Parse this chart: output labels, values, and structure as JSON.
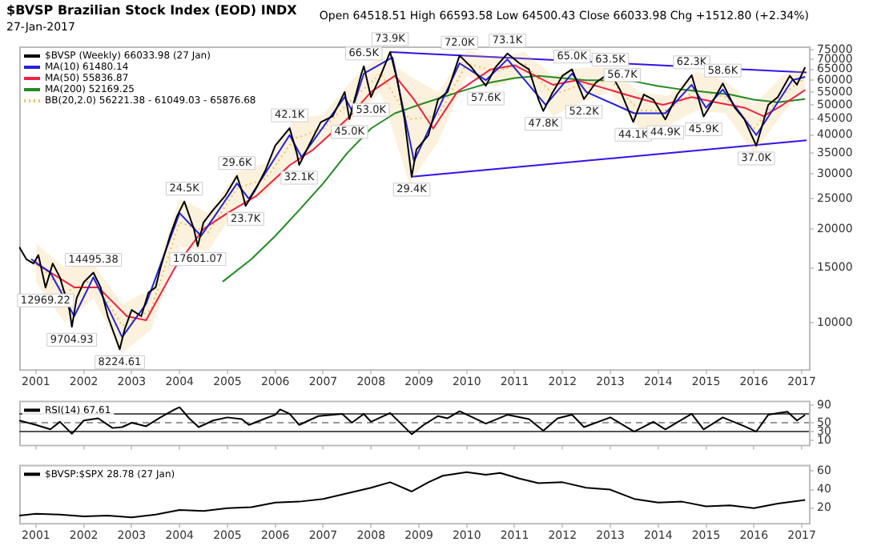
{
  "chart_data": [
    {
      "type": "line",
      "title": "$BVSP Brazilian Stock Index (EOD) INDX",
      "subtitle": "27-Jan-2017",
      "log": "y",
      "legend": "top left",
      "grid": false,
      "marker": "none",
      "xlim": [
        2000.65,
        2017.15
      ],
      "xticks": [
        2001,
        2002,
        2003,
        2004,
        2005,
        2006,
        2007,
        2008,
        2009,
        2010,
        2011,
        2012,
        2013,
        2014,
        2015,
        2016,
        2017
      ],
      "ylim": [
        7100,
        77000
      ],
      "yticks": [
        10000,
        15000,
        20000,
        25000,
        30000,
        35000,
        40000,
        45000,
        50000,
        55000,
        60000,
        65000,
        70000,
        75000
      ],
      "annotations": [
        "Open 64518.51 High 66593.58 Low 64500.43 Close 66033.98 Chg +1512.80 (+2.34%)",
        {
          "text": "12969.22",
          "x": 2001.2,
          "y": 12969.22
        },
        {
          "text": "9704.93",
          "x": 2001.75,
          "y": 9704.93
        },
        {
          "text": "14495.38",
          "x": 2002.2,
          "y": 14495.38
        },
        {
          "text": "8224.61",
          "x": 2002.75,
          "y": 8224.61
        },
        {
          "text": "24.5K",
          "x": 2004.1,
          "y": 24500
        },
        {
          "text": "17601.07",
          "x": 2004.38,
          "y": 17601.07
        },
        {
          "text": "29.6K",
          "x": 2005.2,
          "y": 29600
        },
        {
          "text": "23.7K",
          "x": 2005.38,
          "y": 23700
        },
        {
          "text": "42.1K",
          "x": 2006.3,
          "y": 42100
        },
        {
          "text": "32.1K",
          "x": 2006.5,
          "y": 32100
        },
        {
          "text": "45.0K",
          "x": 2007.55,
          "y": 45000
        },
        {
          "text": "66.5K",
          "x": 2007.85,
          "y": 66500
        },
        {
          "text": "53.0K",
          "x": 2008.0,
          "y": 53000
        },
        {
          "text": "73.9K",
          "x": 2008.4,
          "y": 73900
        },
        {
          "text": "29.4K",
          "x": 2008.85,
          "y": 29400
        },
        {
          "text": "72.0K",
          "x": 2009.85,
          "y": 72000
        },
        {
          "text": "57.6K",
          "x": 2010.4,
          "y": 57600
        },
        {
          "text": "73.1K",
          "x": 2010.85,
          "y": 73100
        },
        {
          "text": "47.8K",
          "x": 2011.6,
          "y": 47800
        },
        {
          "text": "65.0K",
          "x": 2012.2,
          "y": 65000
        },
        {
          "text": "52.2K",
          "x": 2012.45,
          "y": 52200
        },
        {
          "text": "63.5K",
          "x": 2013.0,
          "y": 63500
        },
        {
          "text": "56.7K",
          "x": 2013.25,
          "y": 56700
        },
        {
          "text": "44.1K",
          "x": 2013.48,
          "y": 44100
        },
        {
          "text": "44.9K",
          "x": 2014.15,
          "y": 44900
        },
        {
          "text": "62.3K",
          "x": 2014.7,
          "y": 62300
        },
        {
          "text": "45.9K",
          "x": 2014.95,
          "y": 45900
        },
        {
          "text": "58.6K",
          "x": 2015.35,
          "y": 58600
        },
        {
          "text": "37.0K",
          "x": 2016.05,
          "y": 37000
        }
      ],
      "series": [
        {
          "name": "$BVSP (Weekly) 66033.98 (27 Jan)",
          "color": "#000000",
          "x": [
            2000.65,
            2000.8,
            2000.95,
            2001.05,
            2001.2,
            2001.35,
            2001.5,
            2001.7,
            2001.75,
            2001.85,
            2002.0,
            2002.2,
            2002.35,
            2002.5,
            2002.75,
            2002.85,
            2003.0,
            2003.2,
            2003.35,
            2003.5,
            2003.6,
            2003.8,
            2003.95,
            2004.1,
            2004.3,
            2004.38,
            2004.5,
            2004.7,
            2004.95,
            2005.2,
            2005.3,
            2005.38,
            2005.6,
            2005.8,
            2006.0,
            2006.3,
            2006.45,
            2006.5,
            2006.7,
            2006.95,
            2007.2,
            2007.45,
            2007.55,
            2007.8,
            2007.85,
            2008.0,
            2008.2,
            2008.4,
            2008.55,
            2008.7,
            2008.85,
            2008.95,
            2009.2,
            2009.4,
            2009.6,
            2009.85,
            2010.1,
            2010.4,
            2010.6,
            2010.85,
            2011.1,
            2011.3,
            2011.5,
            2011.6,
            2011.8,
            2012.0,
            2012.2,
            2012.45,
            2012.7,
            2013.0,
            2013.2,
            2013.48,
            2013.7,
            2013.9,
            2014.15,
            2014.4,
            2014.7,
            2014.95,
            2015.1,
            2015.35,
            2015.6,
            2015.8,
            2016.05,
            2016.3,
            2016.5,
            2016.75,
            2016.9,
            2017.07
          ],
          "values": [
            17500,
            16000,
            15500,
            16500,
            12969.22,
            15500,
            14000,
            11000,
            9704.93,
            12000,
            13500,
            14495.38,
            13000,
            10500,
            8224.61,
            9500,
            11000,
            10500,
            12500,
            13000,
            15000,
            19000,
            22000,
            24500,
            20000,
            17601.07,
            21000,
            23000,
            25500,
            29600,
            26500,
            23700,
            27000,
            31000,
            37000,
            42100,
            35000,
            32100,
            37000,
            44000,
            46000,
            55000,
            45000,
            63000,
            66500,
            53000,
            62000,
            73900,
            60000,
            45000,
            29400,
            36000,
            40000,
            52000,
            55000,
            72000,
            66000,
            57600,
            66000,
            73100,
            68000,
            65000,
            52000,
            47800,
            55000,
            62000,
            65000,
            52200,
            59000,
            63500,
            56000,
            44100,
            54000,
            52000,
            44900,
            54000,
            62300,
            45900,
            50000,
            58600,
            49000,
            45000,
            37000,
            50000,
            53000,
            62000,
            58000,
            66033.98
          ]
        },
        {
          "name": "MA(10) 61480.14",
          "color": "#2222dd",
          "x": [
            2000.9,
            2001.3,
            2001.8,
            2002.2,
            2002.8,
            2003.3,
            2004.0,
            2004.45,
            2005.2,
            2005.45,
            2006.3,
            2006.55,
            2007.45,
            2007.6,
            2007.85,
            2008.45,
            2008.9,
            2009.85,
            2010.4,
            2010.85,
            2011.65,
            2012.2,
            2012.5,
            2013.5,
            2014.15,
            2014.7,
            2015.0,
            2015.35,
            2016.05,
            2016.8,
            2017.07
          ],
          "values": [
            16000,
            14500,
            10500,
            14000,
            9000,
            11500,
            22500,
            19000,
            28000,
            25000,
            40000,
            34000,
            53000,
            48000,
            63000,
            71000,
            33000,
            68000,
            60000,
            70000,
            50000,
            63000,
            55000,
            47000,
            47000,
            58000,
            49000,
            56000,
            40000,
            60000,
            61480.14
          ]
        },
        {
          "name": "MA(50) 55836.87",
          "color": "#ee2244",
          "x": [
            2001.0,
            2001.8,
            2002.3,
            2002.9,
            2003.3,
            2003.9,
            2004.5,
            2005.0,
            2005.6,
            2006.3,
            2006.8,
            2007.5,
            2008.0,
            2008.5,
            2008.9,
            2009.3,
            2009.8,
            2010.5,
            2011.0,
            2011.8,
            2012.3,
            2012.8,
            2013.5,
            2014.1,
            2014.7,
            2015.2,
            2015.8,
            2016.2,
            2016.6,
            2017.07
          ],
          "values": [
            15500,
            13000,
            13000,
            10500,
            10200,
            15000,
            20000,
            22500,
            25500,
            32000,
            36000,
            45000,
            55000,
            62000,
            52000,
            42000,
            55000,
            65000,
            67000,
            58000,
            60000,
            57000,
            53000,
            50000,
            53000,
            51000,
            49000,
            46000,
            50000,
            55836.87
          ]
        },
        {
          "name": "MA(200) 52169.25",
          "color": "#228b22",
          "x": [
            2004.9,
            2005.5,
            2006.0,
            2006.5,
            2007.0,
            2007.5,
            2008.0,
            2008.5,
            2009.0,
            2009.5,
            2010.0,
            2010.5,
            2011.0,
            2011.5,
            2012.0,
            2012.5,
            2013.0,
            2013.5,
            2014.0,
            2014.5,
            2015.0,
            2015.5,
            2016.0,
            2016.5,
            2017.07
          ],
          "values": [
            13550,
            16000,
            19000,
            23000,
            28000,
            35000,
            42000,
            47000,
            50000,
            53000,
            56000,
            59000,
            61000,
            62000,
            61000,
            60000,
            60000,
            59500,
            57500,
            56000,
            55000,
            54000,
            52000,
            51000,
            52169.25
          ]
        },
        {
          "name": "BB(20,2.0) 56221.38 - 61049.03 - 65876.68",
          "color": "#f0c060",
          "line_style": "dotted",
          "x": [
            2001.0,
            2001.6,
            2002.2,
            2002.8,
            2003.4,
            2004.0,
            2004.6,
            2005.2,
            2005.8,
            2006.4,
            2007.0,
            2007.6,
            2008.2,
            2008.8,
            2009.4,
            2010.0,
            2010.6,
            2011.2,
            2011.8,
            2012.4,
            2013.0,
            2013.6,
            2014.2,
            2014.8,
            2015.4,
            2016.0,
            2016.6,
            2017.07
          ],
          "values": [
            15800,
            12500,
            13800,
            9800,
            11000,
            21000,
            19500,
            27000,
            29000,
            39000,
            42000,
            52000,
            63000,
            45000,
            46000,
            68000,
            64000,
            68000,
            54000,
            58000,
            60000,
            48000,
            48000,
            56000,
            53000,
            42000,
            54000,
            61049.03
          ],
          "lower": [
            13500,
            10000,
            12000,
            8000,
            9500,
            17500,
            17000,
            23500,
            26000,
            33000,
            38000,
            45000,
            55000,
            28000,
            38000,
            62000,
            57000,
            62000,
            46000,
            51000,
            55000,
            42000,
            43000,
            48000,
            47000,
            35000,
            47000,
            56221.38
          ],
          "upper": [
            18000,
            15000,
            15500,
            11500,
            12800,
            25000,
            22500,
            30500,
            32500,
            45000,
            46500,
            60000,
            72000,
            62000,
            55000,
            75000,
            71000,
            74000,
            62000,
            66000,
            65500,
            55000,
            53500,
            64000,
            60000,
            50000,
            62000,
            65876.68
          ]
        },
        {
          "color": "#3311ee",
          "x": [
            2008.4,
            2017.1
          ],
          "values": [
            73900,
            63500
          ]
        },
        {
          "color": "#3311ee",
          "x": [
            2008.85,
            2017.1
          ],
          "values": [
            29400,
            38500
          ]
        }
      ]
    },
    {
      "type": "line",
      "legend": "top left",
      "grid": false,
      "marker": "none",
      "tick_labels": "y",
      "xlim": [
        2000.65,
        2017.15
      ],
      "xticks": [
        2001,
        2002,
        2003,
        2004,
        2005,
        2006,
        2007,
        2008,
        2009,
        2010,
        2011,
        2012,
        2013,
        2014,
        2015,
        2016,
        2017
      ],
      "ylim": [
        0,
        100
      ],
      "yticks": [
        10,
        30,
        50,
        90
      ],
      "ref_lines": [
        {
          "axis": "y",
          "value": 70,
          "color": "#555555"
        },
        {
          "axis": "y",
          "value": 30,
          "color": "#555555"
        },
        {
          "axis": "y",
          "value": 50,
          "color": "#999999",
          "line_style": "dashed"
        }
      ],
      "series": [
        {
          "name": "RSI(14) 67.61",
          "color": "#000000",
          "x": [
            2000.65,
            2001.0,
            2001.3,
            2001.5,
            2001.75,
            2002.0,
            2002.3,
            2002.6,
            2002.8,
            2003.0,
            2003.3,
            2003.6,
            2003.9,
            2004.0,
            2004.2,
            2004.4,
            2004.7,
            2005.0,
            2005.3,
            2005.45,
            2005.8,
            2006.0,
            2006.1,
            2006.3,
            2006.5,
            2006.9,
            2007.4,
            2007.6,
            2007.85,
            2008.0,
            2008.4,
            2008.85,
            2009.1,
            2009.4,
            2009.6,
            2009.85,
            2010.4,
            2010.85,
            2011.3,
            2011.6,
            2011.9,
            2012.2,
            2012.45,
            2013.0,
            2013.5,
            2013.9,
            2014.15,
            2014.7,
            2014.95,
            2015.35,
            2015.8,
            2016.05,
            2016.3,
            2016.7,
            2016.9,
            2017.07
          ],
          "values": [
            55,
            45,
            35,
            52,
            25,
            55,
            60,
            38,
            40,
            50,
            42,
            62,
            80,
            85,
            60,
            40,
            55,
            62,
            58,
            45,
            60,
            68,
            80,
            70,
            45,
            65,
            70,
            50,
            70,
            52,
            72,
            24,
            45,
            65,
            60,
            76,
            48,
            68,
            58,
            32,
            60,
            68,
            40,
            62,
            30,
            52,
            35,
            70,
            35,
            62,
            42,
            30,
            68,
            75,
            55,
            67.61
          ]
        }
      ]
    },
    {
      "type": "line",
      "legend": "top left",
      "grid": false,
      "marker": "none",
      "xlim": [
        2000.65,
        2017.15
      ],
      "xticks": [
        2001,
        2002,
        2003,
        2004,
        2005,
        2006,
        2007,
        2008,
        2009,
        2010,
        2011,
        2012,
        2013,
        2014,
        2015,
        2016,
        2017
      ],
      "ylim": [
        4,
        67
      ],
      "yticks": [
        20,
        40,
        60
      ],
      "series": [
        {
          "name": "$BVSP:$SPX 28.78 (27 Jan)",
          "color": "#000000",
          "x": [
            2000.65,
            2001.0,
            2001.5,
            2002.0,
            2002.5,
            2003.0,
            2003.5,
            2004.0,
            2004.5,
            2005.0,
            2005.5,
            2006.0,
            2006.5,
            2007.0,
            2007.5,
            2008.0,
            2008.4,
            2008.85,
            2009.2,
            2009.5,
            2010.0,
            2010.4,
            2010.7,
            2011.1,
            2011.5,
            2012.0,
            2012.5,
            2013.0,
            2013.5,
            2014.0,
            2014.5,
            2015.0,
            2015.5,
            2016.0,
            2016.5,
            2017.07
          ],
          "values": [
            12,
            14,
            13,
            11,
            12,
            10,
            13,
            18,
            17,
            20,
            21,
            26,
            27,
            30,
            36,
            42,
            48,
            38,
            48,
            55,
            59,
            56,
            58,
            52,
            47,
            48,
            42,
            40,
            30,
            26,
            27,
            22,
            23,
            20,
            25,
            28.78
          ]
        }
      ]
    }
  ]
}
